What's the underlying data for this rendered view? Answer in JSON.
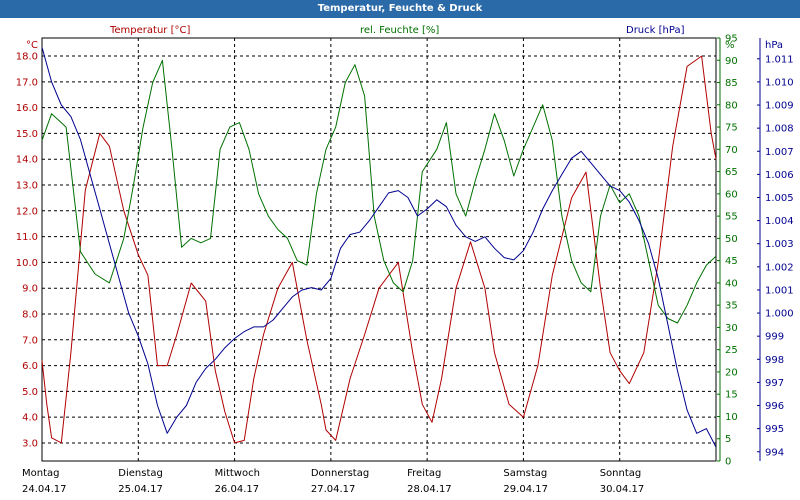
{
  "title": "Temperatur, Feuchte & Druck",
  "colors": {
    "temp": "#b00000",
    "hum": "#007000",
    "press": "#000090",
    "title_bg": "#2a6aa8",
    "grid": "#000000"
  },
  "chart_data": {
    "type": "line",
    "title": "Temperatur, Feuchte & Druck",
    "grid": true,
    "legend_placement": "top",
    "x_ticks": [
      {
        "day": "Montag",
        "date": "24.04.17"
      },
      {
        "day": "Dienstag",
        "date": "25.04.17"
      },
      {
        "day": "Mittwoch",
        "date": "26.04.17"
      },
      {
        "day": "Donnerstag",
        "date": "27.04.17"
      },
      {
        "day": "Freitag",
        "date": "28.04.17"
      },
      {
        "day": "Samstag",
        "date": "29.04.17"
      },
      {
        "day": "Sonntag",
        "date": "30.04.17"
      }
    ],
    "xlim": [
      0,
      7
    ],
    "axes": {
      "temp": {
        "unit": "°C",
        "ylim": [
          2.3,
          18.7
        ],
        "ticks": [
          "3.0",
          "4.0",
          "5.0",
          "6.0",
          "7.0",
          "8.0",
          "9.0",
          "10.0",
          "11.0",
          "12.0",
          "13.0",
          "14.0",
          "15.0",
          "16.0",
          "17.0",
          "18.0"
        ]
      },
      "hum": {
        "unit": "%",
        "ylim": [
          0,
          95
        ],
        "ticks": [
          "0",
          "5",
          "10",
          "15",
          "20",
          "25",
          "30",
          "35",
          "40",
          "45",
          "50",
          "55",
          "60",
          "65",
          "70",
          "75",
          "80",
          "85",
          "90",
          "95"
        ]
      },
      "press": {
        "unit": "hPa",
        "ylim": [
          993.6,
          1011.9
        ],
        "ticks": [
          "994",
          "995",
          "996",
          "997",
          "998",
          "999",
          "1.000",
          "1.001",
          "1.002",
          "1.003",
          "1.004",
          "1.005",
          "1.006",
          "1.007",
          "1.008",
          "1.009",
          "1.010",
          "1.011"
        ]
      }
    },
    "series": [
      {
        "name": "Temperatur [°C]",
        "axis": "temp",
        "color": "#b00000",
        "x": [
          0,
          0.05,
          0.1,
          0.2,
          0.3,
          0.45,
          0.6,
          0.7,
          0.85,
          1.0,
          1.1,
          1.2,
          1.3,
          1.4,
          1.55,
          1.7,
          1.8,
          1.9,
          2.0,
          2.1,
          2.2,
          2.3,
          2.45,
          2.6,
          2.75,
          2.9,
          2.95,
          3.05,
          3.2,
          3.35,
          3.5,
          3.7,
          3.85,
          3.95,
          4.05,
          4.15,
          4.3,
          4.45,
          4.6,
          4.7,
          4.85,
          5.0,
          5.15,
          5.3,
          5.5,
          5.65,
          5.8,
          5.9,
          6.0,
          6.1,
          6.25,
          6.4,
          6.55,
          6.7,
          6.85,
          6.95,
          7.0
        ],
        "values": [
          6.2,
          4.5,
          3.2,
          3.0,
          6.5,
          12.8,
          15.0,
          14.5,
          12.0,
          10.3,
          9.5,
          6.0,
          6.0,
          7.2,
          9.2,
          8.5,
          5.8,
          4.2,
          3.0,
          3.1,
          5.5,
          7.2,
          9.0,
          10.0,
          7.0,
          4.5,
          3.5,
          3.1,
          5.5,
          7.2,
          9.0,
          10.0,
          6.5,
          4.5,
          3.8,
          5.5,
          9.0,
          10.8,
          9.0,
          6.5,
          4.5,
          4.0,
          6.0,
          9.5,
          12.5,
          13.5,
          9.0,
          6.5,
          5.8,
          5.3,
          6.5,
          10.0,
          14.5,
          17.6,
          18.0,
          15.0,
          14.0
        ]
      },
      {
        "name": "rel. Feuchte [%]",
        "axis": "hum",
        "color": "#007000",
        "x": [
          0,
          0.1,
          0.25,
          0.4,
          0.55,
          0.7,
          0.85,
          0.95,
          1.05,
          1.15,
          1.25,
          1.35,
          1.45,
          1.55,
          1.65,
          1.75,
          1.85,
          1.95,
          2.05,
          2.15,
          2.25,
          2.35,
          2.45,
          2.55,
          2.65,
          2.75,
          2.85,
          2.95,
          3.05,
          3.15,
          3.25,
          3.35,
          3.45,
          3.55,
          3.65,
          3.75,
          3.85,
          3.95,
          4.1,
          4.2,
          4.3,
          4.4,
          4.5,
          4.6,
          4.7,
          4.8,
          4.9,
          5.0,
          5.1,
          5.2,
          5.3,
          5.4,
          5.5,
          5.6,
          5.7,
          5.8,
          5.9,
          6.0,
          6.1,
          6.2,
          6.3,
          6.4,
          6.5,
          6.6,
          6.7,
          6.8,
          6.9,
          7.0
        ],
        "values": [
          72,
          78,
          75,
          47,
          42,
          40,
          50,
          62,
          75,
          85,
          90,
          70,
          48,
          50,
          49,
          50,
          70,
          75,
          76,
          70,
          60,
          55,
          52,
          50,
          45,
          44,
          60,
          70,
          75,
          85,
          89,
          82,
          55,
          45,
          40,
          38,
          45,
          65,
          70,
          76,
          60,
          55,
          63,
          70,
          78,
          72,
          64,
          70,
          75,
          80,
          72,
          55,
          45,
          40,
          38,
          55,
          62,
          58,
          60,
          55,
          45,
          35,
          32,
          31,
          35,
          40,
          44,
          46
        ]
      },
      {
        "name": "Druck [hPa]",
        "axis": "press",
        "color": "#000090",
        "x": [
          0,
          0.1,
          0.2,
          0.3,
          0.4,
          0.5,
          0.6,
          0.7,
          0.8,
          0.9,
          1.0,
          1.1,
          1.2,
          1.3,
          1.4,
          1.5,
          1.6,
          1.7,
          1.8,
          1.9,
          2.0,
          2.1,
          2.2,
          2.3,
          2.4,
          2.5,
          2.6,
          2.7,
          2.8,
          2.9,
          3.0,
          3.1,
          3.2,
          3.3,
          3.4,
          3.5,
          3.6,
          3.7,
          3.8,
          3.9,
          4.0,
          4.1,
          4.2,
          4.3,
          4.4,
          4.5,
          4.6,
          4.7,
          4.8,
          4.9,
          5.0,
          5.1,
          5.2,
          5.3,
          5.4,
          5.5,
          5.6,
          5.7,
          5.8,
          5.9,
          6.0,
          6.1,
          6.2,
          6.3,
          6.4,
          6.5,
          6.6,
          6.7,
          6.8,
          6.9,
          7.0
        ],
        "values": [
          1011.5,
          1010.0,
          1009.0,
          1008.5,
          1007.5,
          1006.0,
          1004.5,
          1003.0,
          1001.5,
          1000.0,
          999.0,
          997.8,
          996.0,
          994.8,
          995.5,
          996.0,
          997.0,
          997.6,
          998.0,
          998.5,
          998.9,
          999.2,
          999.4,
          999.4,
          999.7,
          1000.2,
          1000.7,
          1001.0,
          1001.1,
          1001.0,
          1001.5,
          1002.8,
          1003.4,
          1003.5,
          1004.0,
          1004.6,
          1005.2,
          1005.3,
          1005.0,
          1004.2,
          1004.5,
          1004.9,
          1004.6,
          1003.8,
          1003.3,
          1003.1,
          1003.3,
          1002.8,
          1002.4,
          1002.3,
          1002.7,
          1003.5,
          1004.5,
          1005.3,
          1006.0,
          1006.7,
          1007.0,
          1006.5,
          1006.0,
          1005.5,
          1005.3,
          1004.8,
          1004.0,
          1003.0,
          1001.5,
          999.5,
          997.5,
          995.8,
          994.8,
          995.0,
          994.2
        ]
      }
    ]
  }
}
